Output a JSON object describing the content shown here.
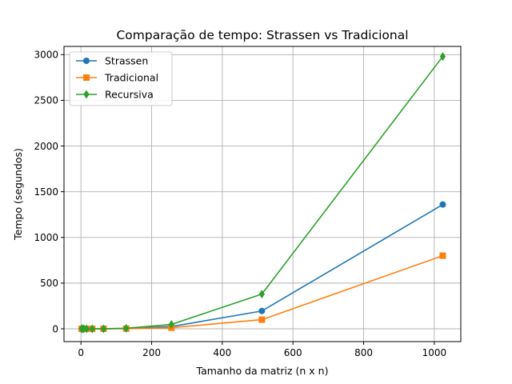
{
  "chart_data": {
    "type": "line",
    "title": "Comparação de tempo: Strassen vs Tradicional",
    "xlabel": "Tamanho da matriz (n x n)",
    "ylabel": "Tempo (segundos)",
    "xlim": [
      -48,
      1075
    ],
    "ylim": [
      -140,
      3090
    ],
    "xticks": [
      0,
      200,
      400,
      600,
      800,
      1000
    ],
    "yticks": [
      0,
      500,
      1000,
      1500,
      2000,
      2500,
      3000
    ],
    "grid": true,
    "legend_position": "top-left",
    "x": [
      2,
      4,
      8,
      16,
      32,
      64,
      128,
      256,
      512,
      1024
    ],
    "series": [
      {
        "name": "Strassen",
        "color": "#1f77b4",
        "marker": "circle",
        "values": [
          0,
          0,
          0,
          0,
          0,
          0.5,
          3,
          25,
          195,
          1360
        ]
      },
      {
        "name": "Tradicional",
        "color": "#ff7f0e",
        "marker": "square",
        "values": [
          0,
          0,
          0,
          0,
          0,
          0.2,
          1.5,
          12,
          100,
          800
        ]
      },
      {
        "name": "Recursiva",
        "color": "#2ca02c",
        "marker": "diamond",
        "values": [
          0,
          0,
          0,
          0,
          0,
          0.6,
          6,
          48,
          380,
          2980
        ]
      }
    ]
  }
}
